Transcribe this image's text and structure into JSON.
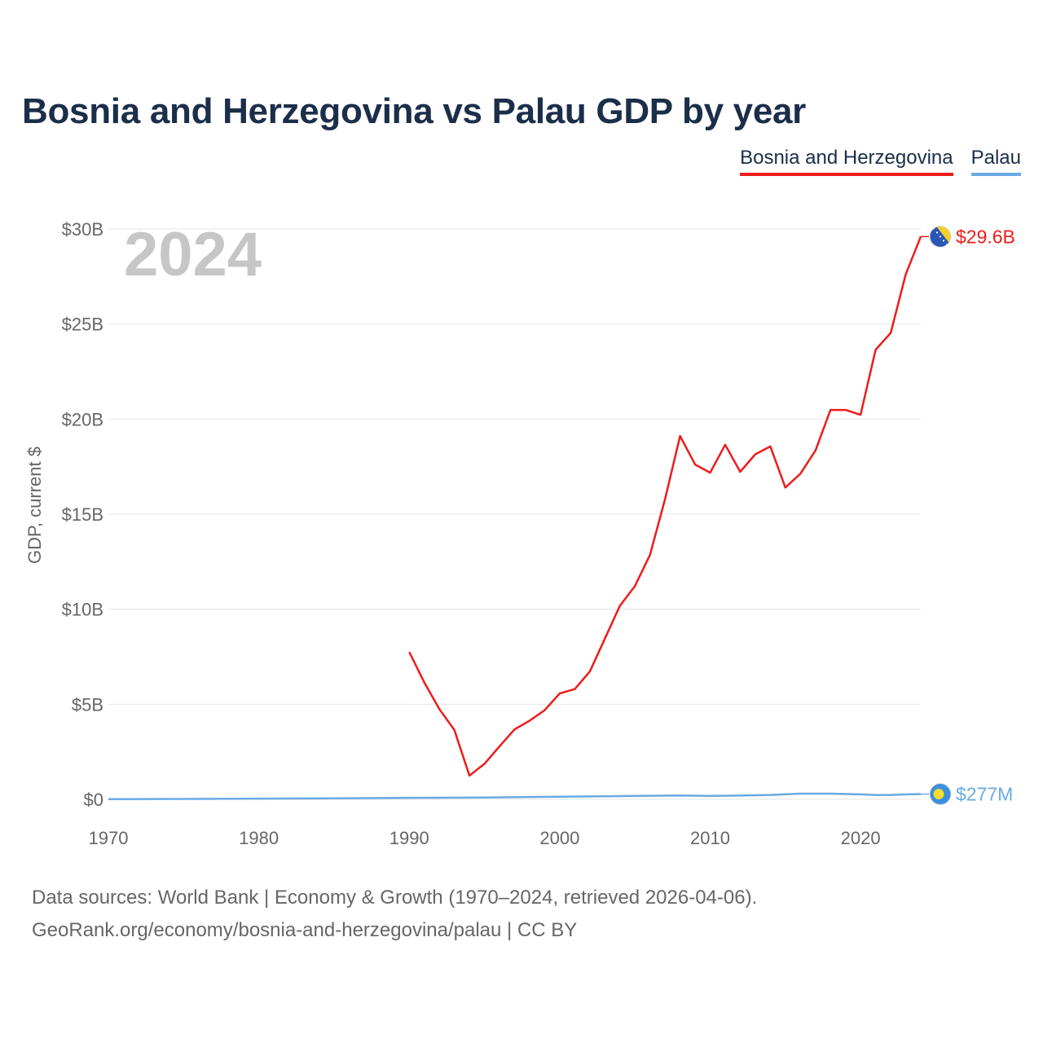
{
  "title": "Bosnia and Herzegovina vs Palau GDP by year",
  "legend": [
    {
      "name": "Bosnia and Herzegovina",
      "color": "#ee1c1c"
    },
    {
      "name": "Palau",
      "color": "#6aaae4"
    }
  ],
  "footer": {
    "line1": "Data sources: World Bank | Economy & Growth (1970–2024, retrieved 2026-04-06).",
    "line2": "GeoRank.org/economy/bosnia-and-herzegovina/palau | CC BY"
  },
  "chart_data": {
    "type": "line",
    "title": "Bosnia and Herzegovina vs Palau GDP by year",
    "current_year": "2024",
    "xlabel": "",
    "ylabel": "GDP, current $",
    "xlim": [
      1970,
      2024
    ],
    "ylim": [
      0,
      30
    ],
    "x_ticks": [
      1970,
      1980,
      1990,
      2000,
      2010,
      2020
    ],
    "y_ticks": [
      0,
      5,
      10,
      15,
      20,
      25,
      30
    ],
    "y_tick_labels": [
      "$0",
      "$5B",
      "$10B",
      "$15B",
      "$20B",
      "$25B",
      "$30B"
    ],
    "grid": true,
    "series": [
      {
        "name": "Bosnia and Herzegovina",
        "color": "#ee1c1c",
        "unit": "billions USD",
        "end_label": "$29.6B",
        "flag": "bosnia-flag",
        "x": [
          1990,
          1991,
          1992,
          1993,
          1994,
          1995,
          1996,
          1997,
          1998,
          1999,
          2000,
          2001,
          2002,
          2003,
          2004,
          2005,
          2006,
          2007,
          2008,
          2009,
          2010,
          2011,
          2012,
          2013,
          2014,
          2015,
          2016,
          2017,
          2018,
          2019,
          2020,
          2021,
          2022,
          2023,
          2024
        ],
        "values": [
          7.75,
          6.15,
          4.75,
          3.65,
          1.25,
          1.87,
          2.79,
          3.68,
          4.14,
          4.69,
          5.57,
          5.8,
          6.72,
          8.45,
          10.18,
          11.22,
          12.86,
          15.78,
          19.11,
          17.61,
          17.18,
          18.65,
          17.23,
          18.15,
          18.56,
          16.4,
          17.13,
          18.35,
          20.48,
          20.48,
          20.23,
          23.65,
          24.53,
          27.61,
          29.6
        ]
      },
      {
        "name": "Palau",
        "color": "#6aaae4",
        "unit": "billions USD",
        "end_label": "$277M",
        "flag": "palau-flag",
        "x": [
          1970,
          1975,
          1980,
          1985,
          1990,
          1995,
          2000,
          2005,
          2008,
          2010,
          2012,
          2014,
          2015,
          2016,
          2018,
          2020,
          2021,
          2022,
          2023,
          2024
        ],
        "values": [
          0.01,
          0.02,
          0.04,
          0.05,
          0.08,
          0.1,
          0.14,
          0.18,
          0.2,
          0.18,
          0.2,
          0.23,
          0.27,
          0.3,
          0.3,
          0.26,
          0.23,
          0.23,
          0.26,
          0.277
        ]
      }
    ]
  }
}
